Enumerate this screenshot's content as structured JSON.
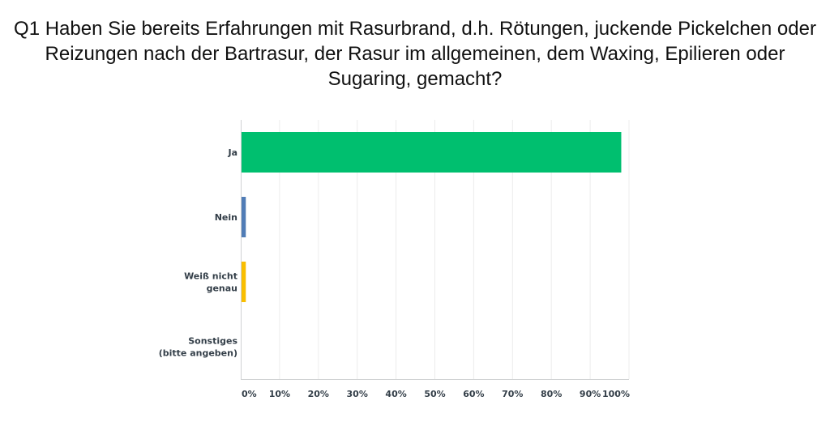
{
  "chart_data": {
    "type": "bar",
    "orientation": "horizontal",
    "title_lines": [
      "Q1 Haben Sie bereits Erfahrungen mit Rasurbrand, d.h. Rötungen, juckende Pickelchen oder",
      "Reizungen nach der Bartrasur, der Rasur im allgemeinen, dem Waxing, Epilieren oder",
      "Sugaring, gemacht?"
    ],
    "categories": [
      [
        "Ja"
      ],
      [
        "Nein"
      ],
      [
        "Weiß nicht",
        "genau"
      ],
      [
        "Sonstiges",
        "(bitte angeben)"
      ]
    ],
    "values": [
      97.8,
      1.1,
      1.1,
      0
    ],
    "colors": [
      "#00bf6f",
      "#507cb6",
      "#f9be00",
      "#6bc8cd"
    ],
    "xlim": [
      0,
      100
    ],
    "ticks": [
      "0%",
      "10%",
      "20%",
      "30%",
      "40%",
      "50%",
      "60%",
      "70%",
      "80%",
      "90%",
      "100%"
    ],
    "grid": true,
    "xlabel": "",
    "ylabel": ""
  }
}
